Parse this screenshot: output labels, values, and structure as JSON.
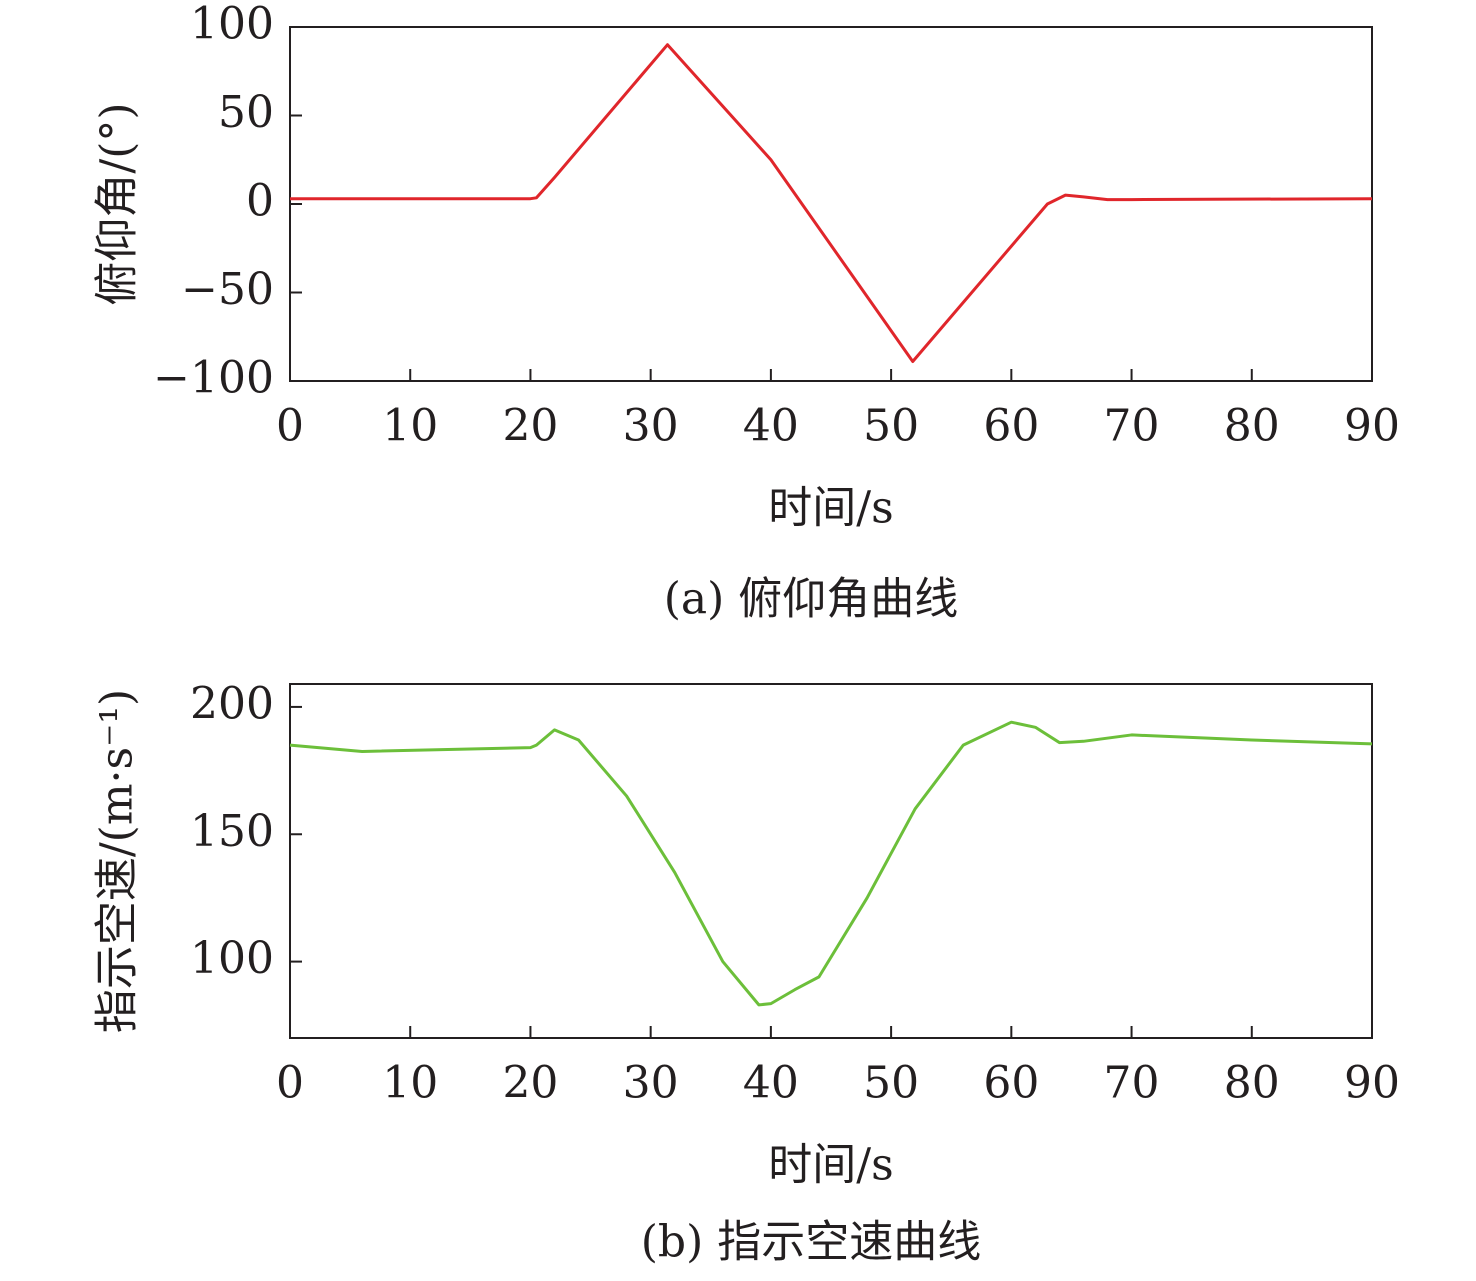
{
  "chart_data": [
    {
      "type": "line",
      "xlabel": "时间/s",
      "ylabel": "俯仰角/(°)",
      "caption": "(a) 俯仰角曲线",
      "xlim": [
        0,
        90
      ],
      "xticks": [
        0,
        10,
        20,
        30,
        40,
        50,
        60,
        70,
        80,
        90
      ],
      "ylim": [
        -100,
        100
      ],
      "yticks": [
        {
          "value": -100,
          "label": "−100"
        },
        {
          "value": -50,
          "label": "−50"
        },
        0,
        50,
        100
      ],
      "x": [
        0,
        20,
        20.5,
        22,
        31.4,
        40,
        51.8,
        63,
        64.5,
        66,
        68,
        70,
        90
      ],
      "series": [
        {
          "color": "#e0262b",
          "values": [
            3,
            3,
            3.5,
            15,
            90,
            25,
            -89,
            0,
            5,
            4,
            2.5,
            2.5,
            3
          ]
        }
      ]
    },
    {
      "type": "line",
      "xlabel": "时间/s",
      "ylabel": "指示空速/(m·s⁻¹)",
      "caption": "(b) 指示空速曲线",
      "xlim": [
        0,
        90
      ],
      "xticks": [
        0,
        10,
        20,
        30,
        40,
        50,
        60,
        70,
        80,
        90
      ],
      "ylim": [
        70,
        209
      ],
      "yticks": [
        100,
        150,
        200
      ],
      "x": [
        0,
        6,
        20,
        20.5,
        22,
        24,
        28,
        32,
        36,
        39,
        40,
        42,
        44,
        48,
        52,
        56,
        60,
        62,
        64,
        66,
        70,
        80,
        90
      ],
      "series": [
        {
          "color": "#6cbf3a",
          "values": [
            185,
            182.5,
            184,
            185,
            191,
            187,
            165,
            135,
            100,
            83,
            83.5,
            89,
            94,
            125,
            160,
            185,
            194,
            192,
            186,
            186.5,
            189,
            187,
            185.5
          ]
        }
      ]
    }
  ]
}
